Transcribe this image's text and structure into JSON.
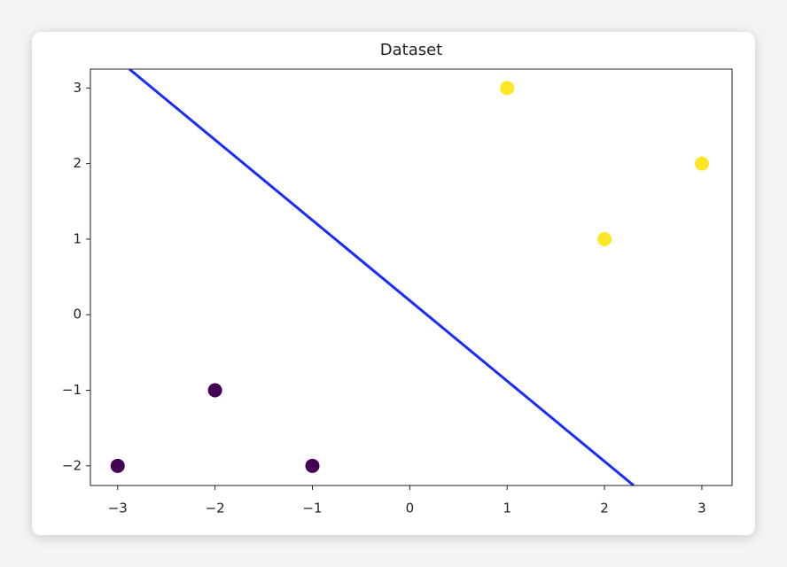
{
  "chart_data": {
    "type": "scatter",
    "title": "Dataset",
    "xlim": [
      -3.28,
      3.31
    ],
    "ylim": [
      -2.26,
      3.25
    ],
    "xticks": [
      {
        "value": -3,
        "label": "−3"
      },
      {
        "value": -2,
        "label": "−2"
      },
      {
        "value": -1,
        "label": "−1"
      },
      0,
      1,
      2,
      3
    ],
    "yticks": [
      {
        "value": -2,
        "label": "−2"
      },
      {
        "value": -1,
        "label": "−1"
      },
      0,
      1,
      2,
      3
    ],
    "series": [
      {
        "type": "scatter",
        "color": "#440154",
        "x": [
          -3,
          -2,
          -1
        ],
        "y": [
          -2,
          -1,
          -2
        ]
      },
      {
        "type": "scatter",
        "color": "#fde725",
        "x": [
          1,
          2,
          3
        ],
        "y": [
          3,
          1,
          2
        ]
      },
      {
        "type": "line",
        "color": "#1a2bff",
        "x": [
          -2.88,
          2.3
        ],
        "y": [
          3.25,
          -2.26
        ]
      }
    ]
  }
}
